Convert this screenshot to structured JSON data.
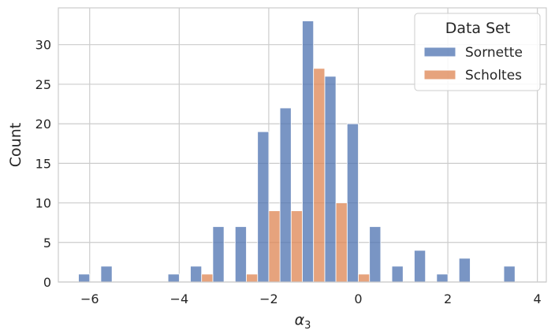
{
  "chart_data": {
    "type": "bar",
    "title": "",
    "xlabel_main": "α",
    "xlabel_sub": "3",
    "ylabel": "Count",
    "xlim": [
      -6.7,
      4.2
    ],
    "ylim": [
      0,
      34.65
    ],
    "xticks": [
      -6,
      -4,
      -2,
      0,
      2,
      4
    ],
    "xtick_labels": [
      "−6",
      "−4",
      "−2",
      "0",
      "2",
      "4"
    ],
    "yticks": [
      0,
      5,
      10,
      15,
      20,
      25,
      30
    ],
    "ytick_labels": [
      "0",
      "5",
      "10",
      "15",
      "20",
      "25",
      "30"
    ],
    "grid": true,
    "legend": {
      "title": "Data Set",
      "placement": "top-right",
      "entries": [
        "Sornette",
        "Scholtes"
      ]
    },
    "bin_edges": [
      -6.25,
      -5.75,
      -5.25,
      -4.75,
      -4.25,
      -3.75,
      -3.25,
      -2.75,
      -2.25,
      -1.75,
      -1.25,
      -0.75,
      -0.25,
      0.25,
      0.75,
      1.25,
      1.75,
      2.25,
      2.75,
      3.25,
      3.75
    ],
    "series": [
      {
        "name": "Sornette",
        "color": "#4c72b0",
        "values": [
          1,
          2,
          0,
          0,
          1,
          2,
          7,
          7,
          19,
          22,
          33,
          26,
          20,
          7,
          2,
          4,
          1,
          3,
          0,
          2
        ]
      },
      {
        "name": "Scholtes",
        "color": "#dd8452",
        "values": [
          0,
          0,
          0,
          0,
          0,
          1,
          0,
          1,
          9,
          9,
          27,
          10,
          1,
          0,
          0,
          0,
          0,
          0,
          0,
          0
        ]
      }
    ]
  }
}
